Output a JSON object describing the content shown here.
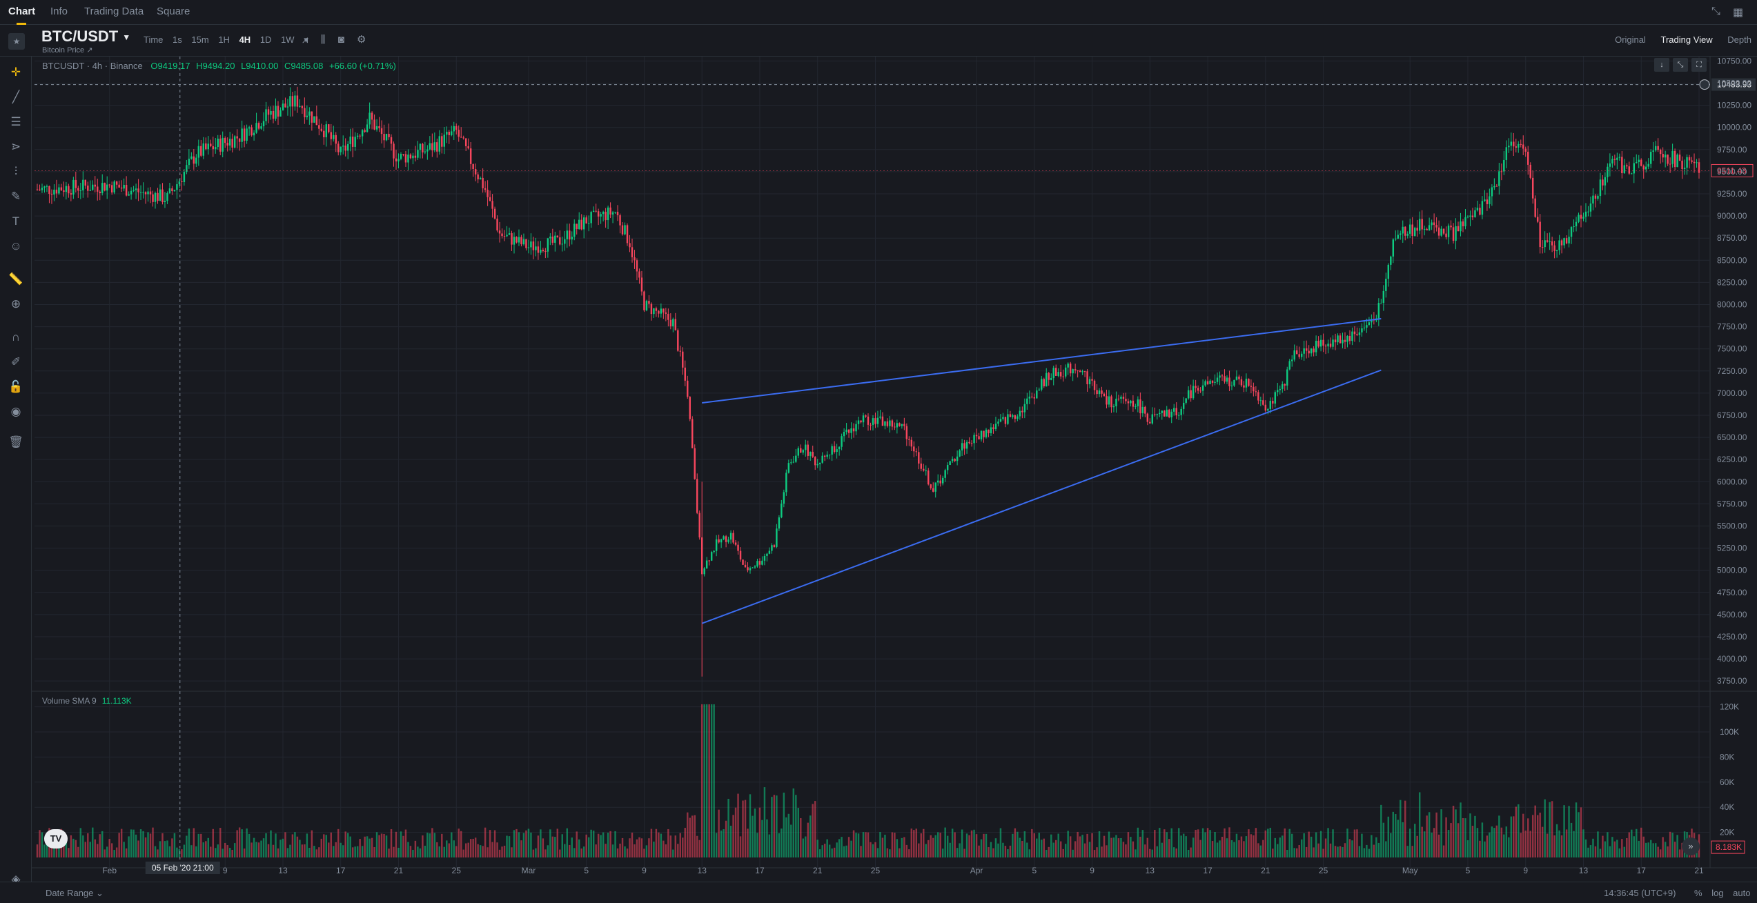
{
  "top_tabs": [
    "Chart",
    "Info",
    "Trading Data",
    "Square"
  ],
  "symbol": {
    "name": "BTC/USDT",
    "subtitle": "Bitcoin Price ↗"
  },
  "intervals": [
    "Time",
    "1s",
    "15m",
    "1H",
    "4H",
    "1D",
    "1W"
  ],
  "selected_interval": "4H",
  "views": [
    "Original",
    "Trading View",
    "Depth"
  ],
  "selected_view": "Trading View",
  "ohlc": {
    "name": "BTCUSDT · 4h · Binance",
    "open": "O9419.17",
    "high": "H9494.20",
    "low": "L9410.00",
    "close": "C9485.08",
    "change": "+66.60 (+0.71%)"
  },
  "volume": {
    "label": "Volume SMA 9",
    "value": "11.113K",
    "last_badge": "8.183K"
  },
  "crosshair": {
    "price_label": "10483.93",
    "time_label": "05 Feb '20   21:00"
  },
  "last_price_badge": "9511.43",
  "bottom": {
    "date_range": "Date Range ⌄",
    "clock": "14:36:45 (UTC+9)",
    "scale_opts": [
      "%",
      "log",
      "auto"
    ]
  },
  "chart_data": {
    "type": "candlestick",
    "price_axis": {
      "ylim": [
        3650,
        10800
      ],
      "ticks": [
        "10750.00",
        "10500.00",
        "10250.00",
        "10000.00",
        "9750.00",
        "9500.00",
        "9250.00",
        "9000.00",
        "8750.00",
        "8500.00",
        "8250.00",
        "8000.00",
        "7750.00",
        "7500.00",
        "7250.00",
        "7000.00",
        "6750.00",
        "6500.00",
        "6250.00",
        "6000.00",
        "5750.00",
        "5500.00",
        "5250.00",
        "5000.00",
        "4750.00",
        "4500.00",
        "4250.00",
        "4000.00",
        "3750.00"
      ]
    },
    "volume_axis": {
      "ylim": [
        0,
        128000
      ],
      "ticks": [
        "120K",
        "100K",
        "80K",
        "60K",
        "40K",
        "20K"
      ]
    },
    "time_axis": {
      "range": [
        "2020-01-27",
        "2020-05-21"
      ],
      "labels": [
        {
          "label": "Feb",
          "date": "2020-02-01"
        },
        {
          "label": "9",
          "date": "2020-02-09"
        },
        {
          "label": "13",
          "date": "2020-02-13"
        },
        {
          "label": "17",
          "date": "2020-02-17"
        },
        {
          "label": "21",
          "date": "2020-02-21"
        },
        {
          "label": "25",
          "date": "2020-02-25"
        },
        {
          "label": "Mar",
          "date": "2020-03-01"
        },
        {
          "label": "5",
          "date": "2020-03-05"
        },
        {
          "label": "9",
          "date": "2020-03-09"
        },
        {
          "label": "13",
          "date": "2020-03-13"
        },
        {
          "label": "17",
          "date": "2020-03-17"
        },
        {
          "label": "21",
          "date": "2020-03-21"
        },
        {
          "label": "25",
          "date": "2020-03-25"
        },
        {
          "label": "Apr",
          "date": "2020-04-01"
        },
        {
          "label": "5",
          "date": "2020-04-05"
        },
        {
          "label": "9",
          "date": "2020-04-09"
        },
        {
          "label": "13",
          "date": "2020-04-13"
        },
        {
          "label": "17",
          "date": "2020-04-17"
        },
        {
          "label": "21",
          "date": "2020-04-21"
        },
        {
          "label": "25",
          "date": "2020-04-25"
        },
        {
          "label": "May",
          "date": "2020-05-01"
        },
        {
          "label": "5",
          "date": "2020-05-05"
        },
        {
          "label": "9",
          "date": "2020-05-09"
        },
        {
          "label": "13",
          "date": "2020-05-13"
        },
        {
          "label": "17",
          "date": "2020-05-17"
        },
        {
          "label": "21",
          "date": "2020-05-21"
        }
      ]
    },
    "price_path": [
      [
        "2020-01-27",
        9300
      ],
      [
        "2020-02-01",
        9350
      ],
      [
        "2020-02-05",
        9200
      ],
      [
        "2020-02-07",
        9700
      ],
      [
        "2020-02-10",
        9900
      ],
      [
        "2020-02-12",
        10150
      ],
      [
        "2020-02-14",
        10300
      ],
      [
        "2020-02-16",
        9950
      ],
      [
        "2020-02-17",
        9700
      ],
      [
        "2020-02-19",
        10100
      ],
      [
        "2020-02-21",
        9650
      ],
      [
        "2020-02-23",
        9750
      ],
      [
        "2020-02-25",
        9950
      ],
      [
        "2020-02-27",
        9300
      ],
      [
        "2020-02-28",
        8800
      ],
      [
        "2020-03-01",
        8650
      ],
      [
        "2020-03-03",
        8700
      ],
      [
        "2020-03-05",
        8950
      ],
      [
        "2020-03-07",
        9050
      ],
      [
        "2020-03-08",
        8700
      ],
      [
        "2020-03-09",
        8000
      ],
      [
        "2020-03-10",
        7900
      ],
      [
        "2020-03-11",
        7800
      ],
      [
        "2020-03-12",
        7000
      ],
      [
        "2020-03-13",
        5000
      ],
      [
        "2020-03-14",
        5300
      ],
      [
        "2020-03-15",
        5400
      ],
      [
        "2020-03-16",
        5000
      ],
      [
        "2020-03-17",
        5100
      ],
      [
        "2020-03-18",
        5300
      ],
      [
        "2020-03-19",
        6200
      ],
      [
        "2020-03-20",
        6400
      ],
      [
        "2020-03-21",
        6200
      ],
      [
        "2020-03-24",
        6700
      ],
      [
        "2020-03-25",
        6700
      ],
      [
        "2020-03-27",
        6600
      ],
      [
        "2020-03-29",
        5900
      ],
      [
        "2020-03-31",
        6400
      ],
      [
        "2020-04-02",
        6600
      ],
      [
        "2020-04-04",
        6800
      ],
      [
        "2020-04-06",
        7200
      ],
      [
        "2020-04-08",
        7300
      ],
      [
        "2020-04-10",
        6900
      ],
      [
        "2020-04-12",
        6900
      ],
      [
        "2020-04-13",
        6700
      ],
      [
        "2020-04-15",
        6800
      ],
      [
        "2020-04-16",
        7050
      ],
      [
        "2020-04-18",
        7150
      ],
      [
        "2020-04-20",
        7100
      ],
      [
        "2020-04-21",
        6850
      ],
      [
        "2020-04-22",
        7000
      ],
      [
        "2020-04-23",
        7450
      ],
      [
        "2020-04-25",
        7550
      ],
      [
        "2020-04-27",
        7650
      ],
      [
        "2020-04-28",
        7750
      ],
      [
        "2020-04-29",
        8000
      ],
      [
        "2020-04-30",
        8800
      ],
      [
        "2020-05-02",
        8900
      ],
      [
        "2020-05-04",
        8800
      ],
      [
        "2020-05-06",
        9100
      ],
      [
        "2020-05-07",
        9400
      ],
      [
        "2020-05-08",
        9900
      ],
      [
        "2020-05-09",
        9700
      ],
      [
        "2020-05-10",
        8700
      ],
      [
        "2020-05-11",
        8600
      ],
      [
        "2020-05-12",
        8800
      ],
      [
        "2020-05-14",
        9300
      ],
      [
        "2020-05-15",
        9700
      ],
      [
        "2020-05-16",
        9500
      ],
      [
        "2020-05-18",
        9700
      ],
      [
        "2020-05-20",
        9600
      ],
      [
        "2020-05-21",
        9500
      ]
    ],
    "trendlines": [
      {
        "name": "upper-trendline",
        "color": "#3b6cf0",
        "from": [
          "2020-03-13",
          6890
        ],
        "to": [
          "2020-04-29",
          7840
        ]
      },
      {
        "name": "lower-trendline",
        "color": "#3b6cf0",
        "from": [
          "2020-03-13",
          4400
        ],
        "to": [
          "2020-04-29",
          7260
        ]
      }
    ],
    "colors": {
      "up": "#0ecb81",
      "down": "#f6465d",
      "grid": "#232730",
      "axis_text": "#848e9c"
    }
  }
}
